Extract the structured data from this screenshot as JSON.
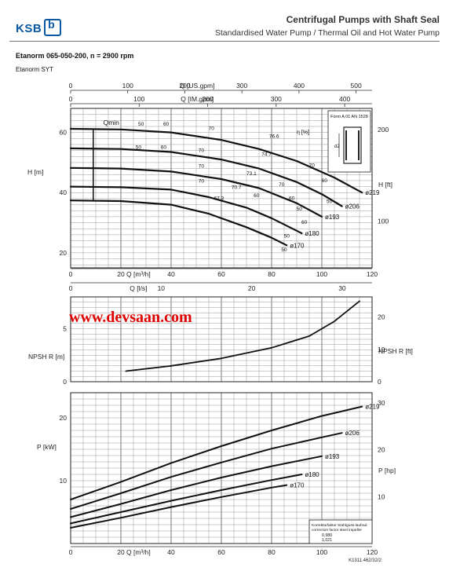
{
  "header": {
    "brand": "KSB",
    "brand_icon": "b",
    "title": "Centrifugal Pumps with Shaft Seal",
    "subtitle": "Standardised Water Pump / Thermal Oil and Hot Water Pump"
  },
  "model": "Etanorm 065-050-200, n = 2900 rpm",
  "series_label": "Etanorm SYT",
  "watermark": "www.devsaan.com",
  "figure_code": "K1311.462/32/2",
  "inset": {
    "title": "Form A 01 AN 1528",
    "dimension_label": "d2"
  },
  "correction_box": {
    "line1": "Korrekturfaktor Stahlguss-laufrad",
    "line2": "correction factor steel impeller",
    "values": [
      "0,980",
      "1,021"
    ]
  },
  "chart_data": [
    {
      "type": "line",
      "title": "",
      "top_axes": [
        {
          "label": "Q [US.gpm]",
          "ticks": [
            "0",
            "100",
            "200",
            "300",
            "400",
            "500"
          ],
          "range": [
            0,
            528
          ]
        },
        {
          "label": "Q [IM.gpm]",
          "ticks": [
            "0",
            "100",
            "200",
            "300",
            "400"
          ],
          "range": [
            0,
            440
          ]
        }
      ],
      "bottom_axes": [
        {
          "label": "Q [m³/h]",
          "ticks": [
            "0",
            "20",
            "40",
            "60",
            "80",
            "100",
            "120"
          ],
          "range": [
            0,
            120
          ]
        },
        {
          "label": "Q [l/s]",
          "ticks": [
            "0",
            "10",
            "20",
            "30"
          ],
          "range": [
            0,
            33.3
          ]
        }
      ],
      "ylabel": "H [m]",
      "y_ticks": [
        "20",
        "40",
        "60"
      ],
      "ylim": [
        15,
        68
      ],
      "y2label": "H [ft]",
      "y2_ticks": [
        "100",
        "200"
      ],
      "grid": true,
      "series": [
        {
          "name": "ø219",
          "x": [
            0,
            20,
            40,
            60,
            75,
            90,
            105,
            116
          ],
          "y": [
            61.2,
            61.0,
            60.0,
            57.5,
            54.5,
            50.5,
            45.0,
            40.0
          ]
        },
        {
          "name": "ø206",
          "x": [
            0,
            20,
            40,
            60,
            75,
            90,
            100,
            108
          ],
          "y": [
            54.7,
            54.5,
            53.5,
            51.0,
            48.0,
            43.5,
            39.5,
            35.5
          ]
        },
        {
          "name": "ø193",
          "x": [
            0,
            20,
            40,
            60,
            75,
            90,
            100
          ],
          "y": [
            48.2,
            48.0,
            47.0,
            44.5,
            41.5,
            36.5,
            32.0
          ]
        },
        {
          "name": "ø180",
          "x": [
            0,
            20,
            40,
            55,
            70,
            80,
            92
          ],
          "y": [
            42.0,
            41.8,
            41.0,
            38.5,
            35.0,
            31.5,
            26.5
          ]
        },
        {
          "name": "ø170",
          "x": [
            0,
            20,
            40,
            55,
            70,
            80,
            86
          ],
          "y": [
            37.4,
            37.2,
            36.0,
            33.0,
            28.5,
            25.0,
            22.5
          ]
        }
      ],
      "annotations": {
        "qmin_label": "Qmin",
        "eta_label": "η [%]",
        "efficiency_labels": [
          "50",
          "60",
          "70",
          "76.6",
          "74.7",
          "73.1",
          "70.7",
          "67.3",
          "70",
          "60",
          "50",
          "70",
          "60",
          "50",
          "70",
          "60",
          "50",
          "70",
          "60",
          "50",
          "70",
          "60",
          "50",
          "70"
        ]
      }
    },
    {
      "type": "line",
      "title": "",
      "bottom_axes": [
        {
          "label": "",
          "ticks": [
            "0",
            "10",
            "20",
            "30"
          ],
          "range": [
            0,
            33.3
          ]
        }
      ],
      "ylabel": "NPSH R [m]",
      "y_ticks": [
        "0",
        "5"
      ],
      "ylim": [
        0,
        8
      ],
      "y2label": "NPSH R [ft]",
      "y2_ticks": [
        "0",
        "10",
        "20"
      ],
      "grid": true,
      "series": [
        {
          "name": "NPSH R",
          "x": [
            22,
            40,
            60,
            80,
            95,
            105,
            115
          ],
          "y": [
            1.0,
            1.5,
            2.2,
            3.2,
            4.3,
            5.7,
            7.6
          ]
        }
      ]
    },
    {
      "type": "line",
      "title": "",
      "bottom_axes": [
        {
          "label": "Q [m³/h]",
          "ticks": [
            "0",
            "20",
            "40",
            "60",
            "80",
            "100",
            "120"
          ],
          "range": [
            0,
            120
          ]
        }
      ],
      "ylabel": "P [kW]",
      "y_ticks": [
        "10",
        "20"
      ],
      "ylim": [
        0,
        24
      ],
      "y2label": "P [hp]",
      "y2_ticks": [
        "10",
        "20",
        "30"
      ],
      "grid": true,
      "series": [
        {
          "name": "ø219",
          "x": [
            0,
            20,
            40,
            60,
            80,
            100,
            116
          ],
          "y": [
            7.0,
            9.8,
            12.8,
            15.5,
            18.0,
            20.3,
            21.8
          ]
        },
        {
          "name": "ø206",
          "x": [
            0,
            20,
            40,
            60,
            80,
            100,
            108
          ],
          "y": [
            5.5,
            8.0,
            10.6,
            12.9,
            15.1,
            16.9,
            17.6
          ]
        },
        {
          "name": "ø193",
          "x": [
            0,
            20,
            40,
            60,
            80,
            100
          ],
          "y": [
            4.2,
            6.3,
            8.5,
            10.5,
            12.3,
            13.9
          ]
        },
        {
          "name": "ø180",
          "x": [
            0,
            20,
            40,
            60,
            80,
            92
          ],
          "y": [
            3.2,
            5.0,
            6.8,
            8.5,
            10.1,
            11.0
          ]
        },
        {
          "name": "ø170",
          "x": [
            0,
            20,
            40,
            60,
            80,
            86
          ],
          "y": [
            2.5,
            4.1,
            5.8,
            7.4,
            8.9,
            9.3
          ]
        }
      ]
    }
  ]
}
